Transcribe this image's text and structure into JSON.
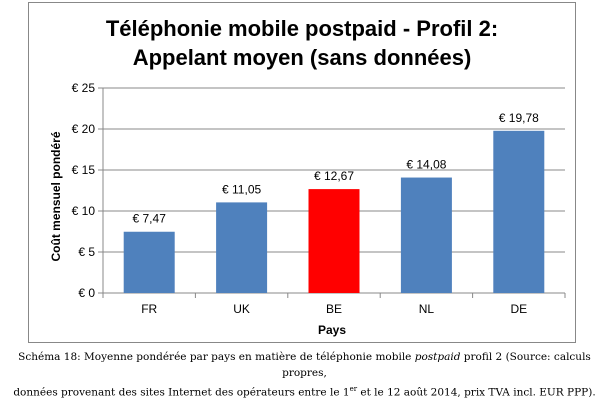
{
  "chart_data": {
    "type": "bar",
    "title_line1": "Téléphonie mobile postpaid - Profil 2:",
    "title_line2": "Appelant moyen (sans données)",
    "xlabel": "Pays",
    "ylabel": "Coût mensuel pondéré",
    "categories": [
      "FR",
      "UK",
      "BE",
      "NL",
      "DE"
    ],
    "values": [
      7.47,
      11.05,
      12.67,
      14.08,
      19.78
    ],
    "data_labels": [
      "€ 7,47",
      "€ 11,05",
      "€ 12,67",
      "€ 14,08",
      "€ 19,78"
    ],
    "colors": [
      "#4F81BD",
      "#4F81BD",
      "#FF0000",
      "#4F81BD",
      "#4F81BD"
    ],
    "ylim": [
      0,
      25
    ],
    "yticks": [
      0,
      5,
      10,
      15,
      20,
      25
    ],
    "ytick_labels": [
      "€ 0",
      "€ 5",
      "€ 10",
      "€ 15",
      "€ 20",
      "€ 25"
    ],
    "grid": true,
    "legend": "none"
  },
  "caption": {
    "line1_a": "Schéma 18: Moyenne pondérée par pays en matière de téléphonie mobile ",
    "line1_italic": "postpaid",
    "line1_b": " profil 2 (Source: calculs propres,",
    "line2_a": "données provenant des sites Internet des opérateurs entre le 1",
    "line2_sup": "er",
    "line2_b": " et le 12 août 2014, prix TVA incl. EUR PPP)."
  }
}
